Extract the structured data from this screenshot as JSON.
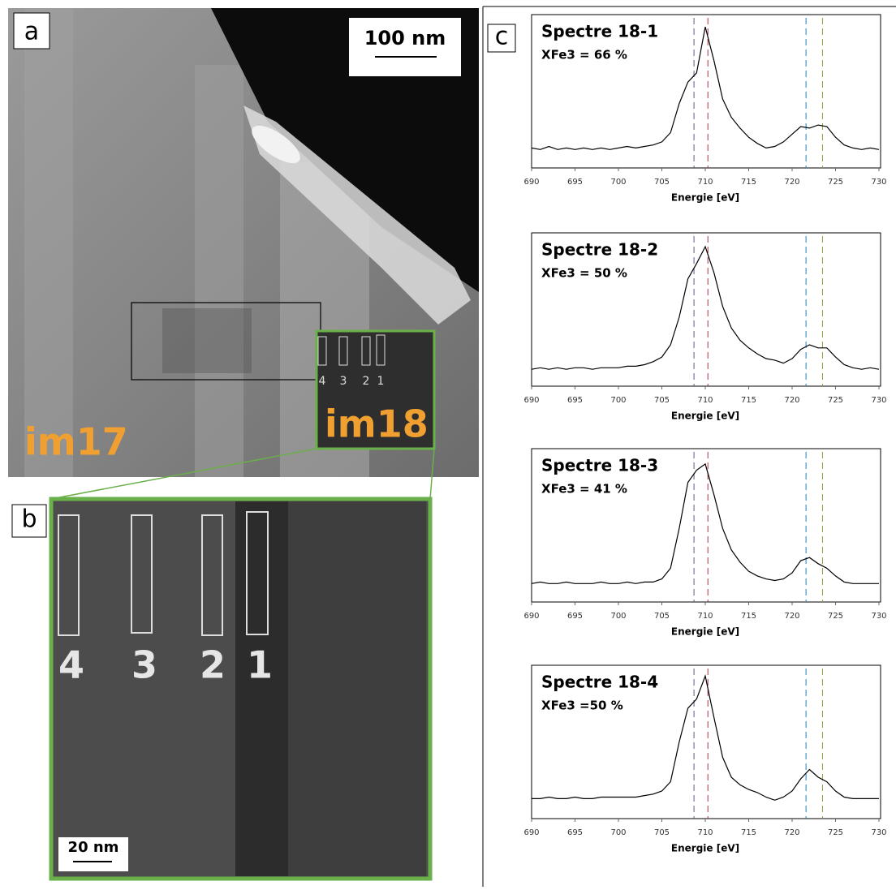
{
  "panel_a": {
    "label": "a",
    "scale_bar": "100 nm",
    "image_labels": [
      "im17",
      "im18"
    ],
    "box_labels": [
      "4",
      "3",
      "2",
      "1"
    ]
  },
  "panel_b": {
    "label": "b",
    "scale_bar": "20 nm",
    "box_labels": [
      "4",
      "3",
      "2",
      "1"
    ]
  },
  "panel_c": {
    "label": "c"
  },
  "chart_data": [
    {
      "type": "line",
      "title": "Spectre 18-1",
      "subtitle": "XFe3 = 66 %",
      "x_label": "Energie [eV]",
      "xlim": [
        690,
        730
      ],
      "xticks": [
        690,
        695,
        700,
        705,
        710,
        715,
        720,
        725,
        730
      ],
      "ylim": [
        0,
        1
      ],
      "x": [
        690,
        691,
        692,
        693,
        694,
        695,
        696,
        697,
        698,
        699,
        700,
        701,
        702,
        703,
        704,
        705,
        706,
        707,
        708,
        709,
        710,
        711,
        712,
        713,
        714,
        715,
        716,
        717,
        718,
        719,
        720,
        721,
        722,
        723,
        724,
        725,
        726,
        727,
        728,
        729,
        730
      ],
      "series": [
        {
          "color": "#000000",
          "values": [
            0.13,
            0.12,
            0.14,
            0.12,
            0.13,
            0.12,
            0.13,
            0.12,
            0.13,
            0.12,
            0.13,
            0.14,
            0.13,
            0.14,
            0.15,
            0.17,
            0.23,
            0.42,
            0.56,
            0.62,
            0.92,
            0.7,
            0.45,
            0.33,
            0.26,
            0.2,
            0.16,
            0.13,
            0.14,
            0.17,
            0.22,
            0.27,
            0.26,
            0.28,
            0.27,
            0.2,
            0.15,
            0.13,
            0.12,
            0.13,
            0.12
          ]
        }
      ],
      "markers": [
        {
          "x": 708.7,
          "color": "#5a5a8a"
        },
        {
          "x": 710.3,
          "color": "#b03040"
        },
        {
          "x": 721.6,
          "color": "#2080c0"
        },
        {
          "x": 723.5,
          "color": "#9a9a40"
        }
      ]
    },
    {
      "type": "line",
      "title": "Spectre 18-2",
      "subtitle": "XFe3 = 50 %",
      "x_label": "Energie [eV]",
      "xlim": [
        690,
        730
      ],
      "xticks": [
        690,
        695,
        700,
        705,
        710,
        715,
        720,
        725,
        730
      ],
      "ylim": [
        0,
        1
      ],
      "x": [
        690,
        691,
        692,
        693,
        694,
        695,
        696,
        697,
        698,
        699,
        700,
        701,
        702,
        703,
        704,
        705,
        706,
        707,
        708,
        709,
        710,
        711,
        712,
        713,
        714,
        715,
        716,
        717,
        718,
        719,
        720,
        721,
        722,
        723,
        724,
        725,
        726,
        727,
        728,
        729,
        730
      ],
      "series": [
        {
          "color": "#000000",
          "values": [
            0.11,
            0.12,
            0.11,
            0.12,
            0.11,
            0.12,
            0.12,
            0.11,
            0.12,
            0.12,
            0.12,
            0.13,
            0.13,
            0.14,
            0.16,
            0.19,
            0.27,
            0.45,
            0.7,
            0.8,
            0.91,
            0.74,
            0.52,
            0.38,
            0.3,
            0.25,
            0.21,
            0.18,
            0.17,
            0.15,
            0.18,
            0.24,
            0.27,
            0.25,
            0.25,
            0.19,
            0.14,
            0.12,
            0.11,
            0.12,
            0.11
          ]
        }
      ],
      "markers": [
        {
          "x": 708.7,
          "color": "#5a5a8a"
        },
        {
          "x": 710.3,
          "color": "#b03040"
        },
        {
          "x": 721.6,
          "color": "#2080c0"
        },
        {
          "x": 723.5,
          "color": "#9a9a40"
        }
      ]
    },
    {
      "type": "line",
      "title": "Spectre 18-3",
      "subtitle": "XFe3 = 41 %",
      "x_label": "Energie [eV]",
      "xlim": [
        690,
        730
      ],
      "xticks": [
        690,
        695,
        700,
        705,
        710,
        715,
        720,
        725,
        730
      ],
      "ylim": [
        0,
        1
      ],
      "x": [
        690,
        691,
        692,
        693,
        694,
        695,
        696,
        697,
        698,
        699,
        700,
        701,
        702,
        703,
        704,
        705,
        706,
        707,
        708,
        709,
        710,
        711,
        712,
        713,
        714,
        715,
        716,
        717,
        718,
        719,
        720,
        721,
        722,
        723,
        724,
        725,
        726,
        727,
        728,
        729,
        730
      ],
      "series": [
        {
          "color": "#000000",
          "values": [
            0.12,
            0.13,
            0.12,
            0.12,
            0.13,
            0.12,
            0.12,
            0.12,
            0.13,
            0.12,
            0.12,
            0.13,
            0.12,
            0.13,
            0.13,
            0.15,
            0.22,
            0.48,
            0.78,
            0.86,
            0.9,
            0.7,
            0.48,
            0.34,
            0.26,
            0.2,
            0.17,
            0.15,
            0.14,
            0.15,
            0.19,
            0.27,
            0.29,
            0.25,
            0.22,
            0.17,
            0.13,
            0.12,
            0.12,
            0.12,
            0.12
          ]
        }
      ],
      "markers": [
        {
          "x": 708.7,
          "color": "#5a5a8a"
        },
        {
          "x": 710.3,
          "color": "#b03040"
        },
        {
          "x": 721.6,
          "color": "#2080c0"
        },
        {
          "x": 723.5,
          "color": "#9a9a40"
        }
      ]
    },
    {
      "type": "line",
      "title": "Spectre 18-4",
      "subtitle": "XFe3 =50 %",
      "x_label": "Energie [eV]",
      "xlim": [
        690,
        730
      ],
      "xticks": [
        690,
        695,
        700,
        705,
        710,
        715,
        720,
        725,
        730
      ],
      "ylim": [
        0,
        1
      ],
      "x": [
        690,
        691,
        692,
        693,
        694,
        695,
        696,
        697,
        698,
        699,
        700,
        701,
        702,
        703,
        704,
        705,
        706,
        707,
        708,
        709,
        710,
        711,
        712,
        713,
        714,
        715,
        716,
        717,
        718,
        719,
        720,
        721,
        722,
        723,
        724,
        725,
        726,
        727,
        728,
        729,
        730
      ],
      "series": [
        {
          "color": "#000000",
          "values": [
            0.13,
            0.13,
            0.14,
            0.13,
            0.13,
            0.14,
            0.13,
            0.13,
            0.14,
            0.14,
            0.14,
            0.14,
            0.14,
            0.15,
            0.16,
            0.18,
            0.24,
            0.5,
            0.72,
            0.78,
            0.93,
            0.66,
            0.4,
            0.27,
            0.22,
            0.19,
            0.17,
            0.14,
            0.12,
            0.14,
            0.18,
            0.26,
            0.32,
            0.27,
            0.24,
            0.18,
            0.14,
            0.13,
            0.13,
            0.13,
            0.13
          ]
        }
      ],
      "markers": [
        {
          "x": 708.7,
          "color": "#5a5a8a"
        },
        {
          "x": 710.3,
          "color": "#b03040"
        },
        {
          "x": 721.6,
          "color": "#2080c0"
        },
        {
          "x": 723.5,
          "color": "#9a9a40"
        }
      ]
    }
  ]
}
